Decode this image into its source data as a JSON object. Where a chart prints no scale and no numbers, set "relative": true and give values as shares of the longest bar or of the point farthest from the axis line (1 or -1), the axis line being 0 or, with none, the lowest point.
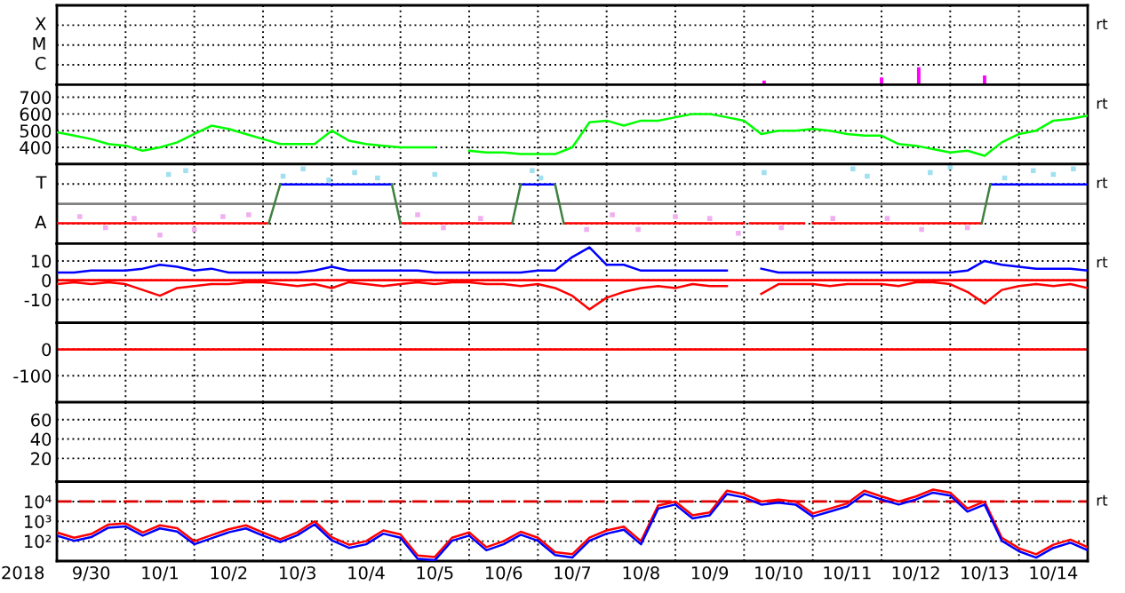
{
  "chart_data": [
    {
      "type": "bar",
      "relative": true,
      "annotations": [
        "C",
        "M",
        "X",
        "rt"
      ],
      "tick_labels": "y",
      "grid": true,
      "xlim": [
        "2018-09-30",
        "2018-10-15"
      ],
      "xticks": [
        {
          "value": "2018-10-01",
          "label": null
        },
        {
          "value": "2018-10-02",
          "label": null
        },
        {
          "value": "2018-10-03",
          "label": null
        },
        {
          "value": "2018-10-04",
          "label": null
        },
        {
          "value": "2018-10-05",
          "label": null
        },
        {
          "value": "2018-10-06",
          "label": null
        },
        {
          "value": "2018-10-07",
          "label": null
        },
        {
          "value": "2018-10-08",
          "label": null
        },
        {
          "value": "2018-10-09",
          "label": null
        },
        {
          "value": "2018-10-10",
          "label": null
        },
        {
          "value": "2018-10-11",
          "label": null
        },
        {
          "value": "2018-10-12",
          "label": null
        },
        {
          "value": "2018-10-13",
          "label": null
        },
        {
          "value": "2018-10-14",
          "label": null
        }
      ],
      "x": [
        "2018-10-10T07:00",
        "2018-10-12T00:00",
        "2018-10-12T13:00",
        "2018-10-13T12:00"
      ],
      "values": [
        0.24,
        0.41,
        1,
        0.53
      ],
      "color": "#ff00ff"
    },
    {
      "type": "line",
      "annotations": [
        "rt"
      ],
      "tick_labels": "y",
      "grid": true,
      "ylim": [
        300,
        775
      ],
      "yticks": [
        400,
        500,
        600,
        700
      ],
      "xlim": [
        "2018-09-30",
        "2018-10-15"
      ],
      "xticks": [
        {
          "value": "2018-10-01",
          "label": null
        },
        {
          "value": "2018-10-02",
          "label": null
        },
        {
          "value": "2018-10-03",
          "label": null
        },
        {
          "value": "2018-10-04",
          "label": null
        },
        {
          "value": "2018-10-05",
          "label": null
        },
        {
          "value": "2018-10-06",
          "label": null
        },
        {
          "value": "2018-10-07",
          "label": null
        },
        {
          "value": "2018-10-08",
          "label": null
        },
        {
          "value": "2018-10-09",
          "label": null
        },
        {
          "value": "2018-10-10",
          "label": null
        },
        {
          "value": "2018-10-11",
          "label": null
        },
        {
          "value": "2018-10-12",
          "label": null
        },
        {
          "value": "2018-10-13",
          "label": null
        },
        {
          "value": "2018-10-14",
          "label": null
        }
      ],
      "x": [
        "2018-09-30T00:00",
        "2018-09-30T06:00",
        "2018-09-30T12:00",
        "2018-09-30T18:00",
        "2018-10-01T00:00",
        "2018-10-01T06:00",
        "2018-10-01T12:00",
        "2018-10-01T18:00",
        "2018-10-02T00:00",
        "2018-10-02T06:00",
        "2018-10-02T12:00",
        "2018-10-02T18:00",
        "2018-10-03T00:00",
        "2018-10-03T06:00",
        "2018-10-03T12:00",
        "2018-10-03T18:00",
        "2018-10-04T00:00",
        "2018-10-04T06:00",
        "2018-10-04T12:00",
        "2018-10-04T18:00",
        "2018-10-05T00:00",
        "2018-10-05T06:00",
        "2018-10-05T12:00",
        "2018-10-05T18:00",
        "2018-10-06T00:00",
        "2018-10-06T06:00",
        "2018-10-06T12:00",
        "2018-10-06T18:00",
        "2018-10-07T00:00",
        "2018-10-07T06:00",
        "2018-10-07T12:00",
        "2018-10-07T18:00",
        "2018-10-08T00:00",
        "2018-10-08T06:00",
        "2018-10-08T12:00",
        "2018-10-08T18:00",
        "2018-10-09T00:00",
        "2018-10-09T06:00",
        "2018-10-09T12:00",
        "2018-10-09T18:00",
        "2018-10-10T00:00",
        "2018-10-10T06:00",
        "2018-10-10T12:00",
        "2018-10-10T18:00",
        "2018-10-11T00:00",
        "2018-10-11T06:00",
        "2018-10-11T12:00",
        "2018-10-11T18:00",
        "2018-10-12T00:00",
        "2018-10-12T06:00",
        "2018-10-12T12:00",
        "2018-10-12T18:00",
        "2018-10-13T00:00",
        "2018-10-13T06:00",
        "2018-10-13T12:00",
        "2018-10-13T18:00",
        "2018-10-14T00:00",
        "2018-10-14T06:00",
        "2018-10-14T12:00",
        "2018-10-14T18:00",
        "2018-10-15T00:00"
      ],
      "series": [
        {
          "color": "#00ff00",
          "values": [
            490,
            470,
            450,
            420,
            410,
            380,
            400,
            430,
            480,
            530,
            510,
            480,
            450,
            420,
            420,
            420,
            500,
            440,
            420,
            410,
            400,
            400,
            400,
            null,
            380,
            370,
            370,
            360,
            360,
            360,
            400,
            550,
            560,
            530,
            560,
            560,
            580,
            600,
            600,
            580,
            560,
            480,
            500,
            500,
            510,
            500,
            480,
            470,
            470,
            420,
            410,
            390,
            370,
            380,
            350,
            430,
            480,
            500,
            560,
            570,
            590
          ]
        }
      ]
    },
    {
      "type": "line",
      "relative": true,
      "annotations": [
        "A",
        "T",
        "rt"
      ],
      "tick_labels": "y",
      "grid": true,
      "xlim": [
        "2018-09-30",
        "2018-10-15"
      ],
      "xticks": [
        {
          "value": "2018-10-01",
          "label": null
        },
        {
          "value": "2018-10-02",
          "label": null
        },
        {
          "value": "2018-10-03",
          "label": null
        },
        {
          "value": "2018-10-04",
          "label": null
        },
        {
          "value": "2018-10-05",
          "label": null
        },
        {
          "value": "2018-10-06",
          "label": null
        },
        {
          "value": "2018-10-07",
          "label": null
        },
        {
          "value": "2018-10-08",
          "label": null
        },
        {
          "value": "2018-10-09",
          "label": null
        },
        {
          "value": "2018-10-10",
          "label": null
        },
        {
          "value": "2018-10-11",
          "label": null
        },
        {
          "value": "2018-10-12",
          "label": null
        },
        {
          "value": "2018-10-13",
          "label": null
        },
        {
          "value": "2018-10-14",
          "label": null
        }
      ],
      "ref_lines": [
        {
          "axis": "y",
          "value": 0,
          "color": "#808080",
          "line_style": "solid"
        }
      ],
      "series": [
        {
          "type": "scatter",
          "color": "#a0e0f0",
          "x": [
            "2018-10-01T15:00",
            "2018-10-01T21:00",
            "2018-10-03T07:00",
            "2018-10-03T14:00",
            "2018-10-03T23:00",
            "2018-10-04T08:00",
            "2018-10-04T16:00",
            "2018-10-05T12:00",
            "2018-10-06T22:00",
            "2018-10-07T01:00",
            "2018-10-10T07:00",
            "2018-10-11T14:00",
            "2018-10-11T19:00",
            "2018-10-12T17:00",
            "2018-10-13T00:00",
            "2018-10-13T19:00",
            "2018-10-14T05:00",
            "2018-10-14T12:00",
            "2018-10-14T19:00"
          ],
          "values": [
            0.8,
            0.9,
            0.75,
            0.95,
            0.65,
            0.85,
            0.7,
            0.8,
            0.9,
            0.7,
            0.85,
            0.95,
            0.75,
            0.85,
            1,
            0.7,
            0.9,
            0.8,
            0.95
          ]
        },
        {
          "type": "scatter",
          "color": "#f0b0f0",
          "x": [
            "2018-09-30T08:00",
            "2018-09-30T17:00",
            "2018-10-01T03:00",
            "2018-10-01T12:00",
            "2018-10-02T00:00",
            "2018-10-02T10:00",
            "2018-10-02T19:00",
            "2018-10-05T06:00",
            "2018-10-05T15:00",
            "2018-10-06T04:00",
            "2018-10-07T17:00",
            "2018-10-08T02:00",
            "2018-10-08T11:00",
            "2018-10-09T00:00",
            "2018-10-09T12:00",
            "2018-10-09T22:00",
            "2018-10-10T13:00",
            "2018-10-11T07:00",
            "2018-10-12T02:00",
            "2018-10-12T14:00",
            "2018-10-13T06:00"
          ],
          "values": [
            -0.35,
            -0.65,
            -0.4,
            -0.85,
            -0.7,
            -0.35,
            -0.3,
            -0.3,
            -0.65,
            -0.4,
            -0.7,
            -0.3,
            -0.7,
            -0.35,
            -0.4,
            -0.8,
            -0.65,
            -0.4,
            -0.4,
            -0.7,
            -0.65
          ]
        },
        {
          "color": "#ff0000",
          "x": [
            "2018-09-30T00:00",
            "2018-10-03T02:00",
            "2018-10-03T03:00",
            "2018-10-05T00:00",
            "2018-10-06T15:00",
            "2018-10-06T16:00",
            "2018-10-07T09:00",
            "2018-10-10T00:00",
            "2018-10-10T01:00",
            "2018-10-10T02:00",
            "2018-10-10T21:00",
            "2018-10-10T22:00",
            "2018-10-11T00:00",
            "2018-10-13T11:00"
          ],
          "values": [
            -0.53,
            -0.53,
            null,
            -0.53,
            -0.53,
            null,
            -0.53,
            -0.53,
            null,
            -0.53,
            -0.53,
            null,
            -0.53,
            -0.53
          ]
        },
        {
          "color": "#0000ff",
          "x": [
            "2018-10-03T06:00",
            "2018-10-04T21:00",
            "2018-10-04T22:00",
            "2018-10-06T18:00",
            "2018-10-07T06:00",
            "2018-10-07T07:00",
            "2018-10-13T14:00",
            "2018-10-15T00:00"
          ],
          "values": [
            0.53,
            0.53,
            null,
            0.53,
            0.53,
            null,
            0.53,
            0.53
          ]
        },
        {
          "color": "#408040",
          "x": [
            "2018-10-03T02:00",
            "2018-10-03T06:00",
            "2018-10-03T07:00",
            "2018-10-04T21:00",
            "2018-10-05T00:00",
            "2018-10-05T01:00",
            "2018-10-06T15:00",
            "2018-10-06T18:00",
            "2018-10-06T19:00",
            "2018-10-07T06:00",
            "2018-10-07T09:00",
            "2018-10-07T10:00",
            "2018-10-13T11:00",
            "2018-10-13T14:00"
          ],
          "values": [
            -0.53,
            0.53,
            null,
            0.53,
            -0.53,
            null,
            -0.53,
            0.53,
            null,
            0.53,
            -0.53,
            null,
            -0.53,
            0.53
          ]
        }
      ]
    },
    {
      "type": "line",
      "annotations": [
        "rt"
      ],
      "tick_labels": "y",
      "grid": true,
      "ylim": [
        -22,
        19
      ],
      "yticks": [
        {
          "value": -10,
          "label": "-10"
        },
        0,
        10
      ],
      "xlim": [
        "2018-09-30",
        "2018-10-15"
      ],
      "xticks": [
        {
          "value": "2018-10-01",
          "label": null
        },
        {
          "value": "2018-10-02",
          "label": null
        },
        {
          "value": "2018-10-03",
          "label": null
        },
        {
          "value": "2018-10-04",
          "label": null
        },
        {
          "value": "2018-10-05",
          "label": null
        },
        {
          "value": "2018-10-06",
          "label": null
        },
        {
          "value": "2018-10-07",
          "label": null
        },
        {
          "value": "2018-10-08",
          "label": null
        },
        {
          "value": "2018-10-09",
          "label": null
        },
        {
          "value": "2018-10-10",
          "label": null
        },
        {
          "value": "2018-10-11",
          "label": null
        },
        {
          "value": "2018-10-12",
          "label": null
        },
        {
          "value": "2018-10-13",
          "label": null
        },
        {
          "value": "2018-10-14",
          "label": null
        }
      ],
      "ref_lines": [
        {
          "axis": "y",
          "value": 0,
          "color": "#ff0000",
          "line_style": "solid"
        }
      ],
      "x": [
        "2018-09-30T00:00",
        "2018-09-30T06:00",
        "2018-09-30T12:00",
        "2018-09-30T18:00",
        "2018-10-01T00:00",
        "2018-10-01T06:00",
        "2018-10-01T12:00",
        "2018-10-01T18:00",
        "2018-10-02T00:00",
        "2018-10-02T06:00",
        "2018-10-02T12:00",
        "2018-10-02T18:00",
        "2018-10-03T00:00",
        "2018-10-03T06:00",
        "2018-10-03T12:00",
        "2018-10-03T18:00",
        "2018-10-04T00:00",
        "2018-10-04T06:00",
        "2018-10-04T12:00",
        "2018-10-04T18:00",
        "2018-10-05T00:00",
        "2018-10-05T06:00",
        "2018-10-05T12:00",
        "2018-10-05T18:00",
        "2018-10-06T00:00",
        "2018-10-06T06:00",
        "2018-10-06T12:00",
        "2018-10-06T18:00",
        "2018-10-07T00:00",
        "2018-10-07T06:00",
        "2018-10-07T12:00",
        "2018-10-07T18:00",
        "2018-10-08T00:00",
        "2018-10-08T06:00",
        "2018-10-08T12:00",
        "2018-10-08T18:00",
        "2018-10-09T00:00",
        "2018-10-09T06:00",
        "2018-10-09T12:00",
        "2018-10-09T18:00",
        "2018-10-10T00:00",
        "2018-10-10T06:00",
        "2018-10-10T12:00",
        "2018-10-10T18:00",
        "2018-10-11T00:00",
        "2018-10-11T06:00",
        "2018-10-11T12:00",
        "2018-10-11T18:00",
        "2018-10-12T00:00",
        "2018-10-12T06:00",
        "2018-10-12T12:00",
        "2018-10-12T18:00",
        "2018-10-13T00:00",
        "2018-10-13T06:00",
        "2018-10-13T12:00",
        "2018-10-13T18:00",
        "2018-10-14T00:00",
        "2018-10-14T06:00",
        "2018-10-14T12:00",
        "2018-10-14T18:00",
        "2018-10-15T00:00"
      ],
      "series": [
        {
          "color": "#0000ff",
          "values": [
            4,
            4,
            5,
            5,
            5,
            6,
            8,
            7,
            5,
            6,
            4,
            4,
            4,
            4,
            4,
            5,
            7,
            5,
            5,
            5,
            5,
            5,
            4,
            4,
            4,
            4,
            4,
            4,
            5,
            5,
            12,
            17,
            8,
            8,
            5,
            5,
            5,
            5,
            5,
            5,
            null,
            6,
            4,
            4,
            4,
            4,
            4,
            4,
            4,
            4,
            4,
            4,
            4,
            5,
            10,
            8,
            7,
            6,
            6,
            6,
            5
          ]
        },
        {
          "color": "#ff0000",
          "values": [
            -2,
            -1,
            -2,
            -1,
            -2,
            -5,
            -8,
            -4,
            -3,
            -2,
            -2,
            -1,
            -1,
            -2,
            -3,
            -2,
            -4,
            -1,
            -2,
            -3,
            -2,
            -1,
            -2,
            -1,
            -1,
            -2,
            -2,
            -3,
            -2,
            -4,
            -8,
            -15,
            -9,
            -6,
            -4,
            -3,
            -4,
            -2,
            -3,
            -3,
            null,
            -7,
            -2,
            -2,
            -2,
            -3,
            -2,
            -2,
            -2,
            -3,
            -1,
            -1,
            -2,
            -6,
            -12,
            -5,
            -3,
            -2,
            -3,
            -2,
            -4
          ]
        }
      ]
    },
    {
      "type": "line",
      "tick_labels": "y",
      "grid": true,
      "ylim": [
        -200,
        100
      ],
      "yticks": [
        {
          "value": -100,
          "label": "-100"
        },
        0
      ],
      "xlim": [
        "2018-09-30",
        "2018-10-15"
      ],
      "xticks": [
        {
          "value": "2018-10-01",
          "label": null
        },
        {
          "value": "2018-10-02",
          "label": null
        },
        {
          "value": "2018-10-03",
          "label": null
        },
        {
          "value": "2018-10-04",
          "label": null
        },
        {
          "value": "2018-10-05",
          "label": null
        },
        {
          "value": "2018-10-06",
          "label": null
        },
        {
          "value": "2018-10-07",
          "label": null
        },
        {
          "value": "2018-10-08",
          "label": null
        },
        {
          "value": "2018-10-09",
          "label": null
        },
        {
          "value": "2018-10-10",
          "label": null
        },
        {
          "value": "2018-10-11",
          "label": null
        },
        {
          "value": "2018-10-12",
          "label": null
        },
        {
          "value": "2018-10-13",
          "label": null
        },
        {
          "value": "2018-10-14",
          "label": null
        }
      ],
      "ref_lines": [
        {
          "axis": "y",
          "value": 0,
          "color": "#ff0000",
          "line_style": "solid"
        }
      ]
    },
    {
      "type": "line",
      "tick_labels": "y",
      "grid": true,
      "ylim": [
        -4,
        78
      ],
      "yticks": [
        20,
        40,
        60
      ],
      "xlim": [
        "2018-09-30",
        "2018-10-15"
      ],
      "xticks": [
        {
          "value": "2018-10-01",
          "label": null
        },
        {
          "value": "2018-10-02",
          "label": null
        },
        {
          "value": "2018-10-03",
          "label": null
        },
        {
          "value": "2018-10-04",
          "label": null
        },
        {
          "value": "2018-10-05",
          "label": null
        },
        {
          "value": "2018-10-06",
          "label": null
        },
        {
          "value": "2018-10-07",
          "label": null
        },
        {
          "value": "2018-10-08",
          "label": null
        },
        {
          "value": "2018-10-09",
          "label": null
        },
        {
          "value": "2018-10-10",
          "label": null
        },
        {
          "value": "2018-10-11",
          "label": null
        },
        {
          "value": "2018-10-12",
          "label": null
        },
        {
          "value": "2018-10-13",
          "label": null
        },
        {
          "value": "2018-10-14",
          "label": null
        }
      ]
    },
    {
      "type": "line",
      "annotations": [
        "rt"
      ],
      "xlabel": "2018",
      "log": true,
      "grid": true,
      "ylim": [
        10,
        100000
      ],
      "yticks": [
        {
          "value": 100,
          "label": "10²"
        },
        {
          "value": 1000,
          "label": "10³"
        },
        {
          "value": 10000,
          "label": "10⁴"
        }
      ],
      "xlim": [
        "2018-09-30",
        "2018-10-15"
      ],
      "xticks": [
        {
          "value": "2018-09-30T12:00",
          "label": "9/30"
        },
        {
          "value": "2018-10-01",
          "label": null
        },
        {
          "value": "2018-10-01T12:00",
          "label": "10/1"
        },
        {
          "value": "2018-10-02",
          "label": null
        },
        {
          "value": "2018-10-02T12:00",
          "label": "10/2"
        },
        {
          "value": "2018-10-03",
          "label": null
        },
        {
          "value": "2018-10-03T12:00",
          "label": "10/3"
        },
        {
          "value": "2018-10-04",
          "label": null
        },
        {
          "value": "2018-10-04T12:00",
          "label": "10/4"
        },
        {
          "value": "2018-10-05",
          "label": null
        },
        {
          "value": "2018-10-05T12:00",
          "label": "10/5"
        },
        {
          "value": "2018-10-06",
          "label": null
        },
        {
          "value": "2018-10-06T12:00",
          "label": "10/6"
        },
        {
          "value": "2018-10-07",
          "label": null
        },
        {
          "value": "2018-10-07T12:00",
          "label": "10/7"
        },
        {
          "value": "2018-10-08",
          "label": null
        },
        {
          "value": "2018-10-08T12:00",
          "label": "10/8"
        },
        {
          "value": "2018-10-09",
          "label": null
        },
        {
          "value": "2018-10-09T12:00",
          "label": "10/9"
        },
        {
          "value": "2018-10-10",
          "label": null
        },
        {
          "value": "2018-10-10T12:00",
          "label": "10/10"
        },
        {
          "value": "2018-10-11",
          "label": null
        },
        {
          "value": "2018-10-11T12:00",
          "label": "10/11"
        },
        {
          "value": "2018-10-12",
          "label": null
        },
        {
          "value": "2018-10-12T12:00",
          "label": "10/12"
        },
        {
          "value": "2018-10-13",
          "label": null
        },
        {
          "value": "2018-10-13T12:00",
          "label": "10/13"
        },
        {
          "value": "2018-10-14",
          "label": null
        },
        {
          "value": "2018-10-14T12:00",
          "label": "10/14"
        }
      ],
      "ref_lines": [
        {
          "axis": "y",
          "value": 10000,
          "color": "#dd0000",
          "line_style": "dashed"
        }
      ],
      "x": [
        "2018-09-30T00:00",
        "2018-09-30T06:00",
        "2018-09-30T12:00",
        "2018-09-30T18:00",
        "2018-10-01T00:00",
        "2018-10-01T06:00",
        "2018-10-01T12:00",
        "2018-10-01T18:00",
        "2018-10-02T00:00",
        "2018-10-02T06:00",
        "2018-10-02T12:00",
        "2018-10-02T18:00",
        "2018-10-03T00:00",
        "2018-10-03T06:00",
        "2018-10-03T12:00",
        "2018-10-03T18:00",
        "2018-10-04T00:00",
        "2018-10-04T06:00",
        "2018-10-04T12:00",
        "2018-10-04T18:00",
        "2018-10-05T00:00",
        "2018-10-05T06:00",
        "2018-10-05T12:00",
        "2018-10-05T18:00",
        "2018-10-06T00:00",
        "2018-10-06T06:00",
        "2018-10-06T12:00",
        "2018-10-06T18:00",
        "2018-10-07T00:00",
        "2018-10-07T06:00",
        "2018-10-07T12:00",
        "2018-10-07T18:00",
        "2018-10-08T00:00",
        "2018-10-08T06:00",
        "2018-10-08T12:00",
        "2018-10-08T18:00",
        "2018-10-09T00:00",
        "2018-10-09T06:00",
        "2018-10-09T12:00",
        "2018-10-09T18:00",
        "2018-10-10T00:00",
        "2018-10-10T06:00",
        "2018-10-10T12:00",
        "2018-10-10T18:00",
        "2018-10-11T00:00",
        "2018-10-11T06:00",
        "2018-10-11T12:00",
        "2018-10-11T18:00",
        "2018-10-12T00:00",
        "2018-10-12T06:00",
        "2018-10-12T12:00",
        "2018-10-12T18:00",
        "2018-10-13T00:00",
        "2018-10-13T06:00",
        "2018-10-13T12:00",
        "2018-10-13T18:00",
        "2018-10-14T00:00",
        "2018-10-14T06:00",
        "2018-10-14T12:00",
        "2018-10-14T18:00",
        "2018-10-15T00:00"
      ],
      "series": [
        {
          "color": "#ff0000",
          "values": [
            275,
            150,
            230,
            690,
            790,
            275,
            630,
            450,
            100,
            200,
            400,
            630,
            275,
            125,
            280,
            1000,
            160,
            66,
            100,
            350,
            220,
            19,
            16,
            150,
            275,
            50,
            100,
            300,
            150,
            28,
            22,
            150,
            350,
            540,
            100,
            6300,
            10000,
            2000,
            2800,
            35000,
            23000,
            10000,
            12600,
            10000,
            2500,
            4400,
            8000,
            35000,
            18000,
            10000,
            18000,
            40000,
            28000,
            4400,
            10000,
            150,
            44,
            22,
            66,
            120,
            50
          ]
        },
        {
          "color": "#0000ff",
          "values": [
            190,
            105,
            160,
            480,
            550,
            190,
            440,
            310,
            70,
            140,
            280,
            440,
            190,
            90,
            200,
            700,
            110,
            46,
            70,
            240,
            150,
            13,
            11,
            105,
            190,
            35,
            70,
            210,
            105,
            20,
            15,
            105,
            240,
            380,
            70,
            4400,
            7000,
            1400,
            2000,
            24000,
            16000,
            7000,
            8800,
            7000,
            1750,
            3100,
            5600,
            24000,
            12600,
            7000,
            12600,
            28000,
            20000,
            3100,
            7000,
            105,
            31,
            15,
            46,
            84,
            35
          ]
        }
      ]
    }
  ]
}
